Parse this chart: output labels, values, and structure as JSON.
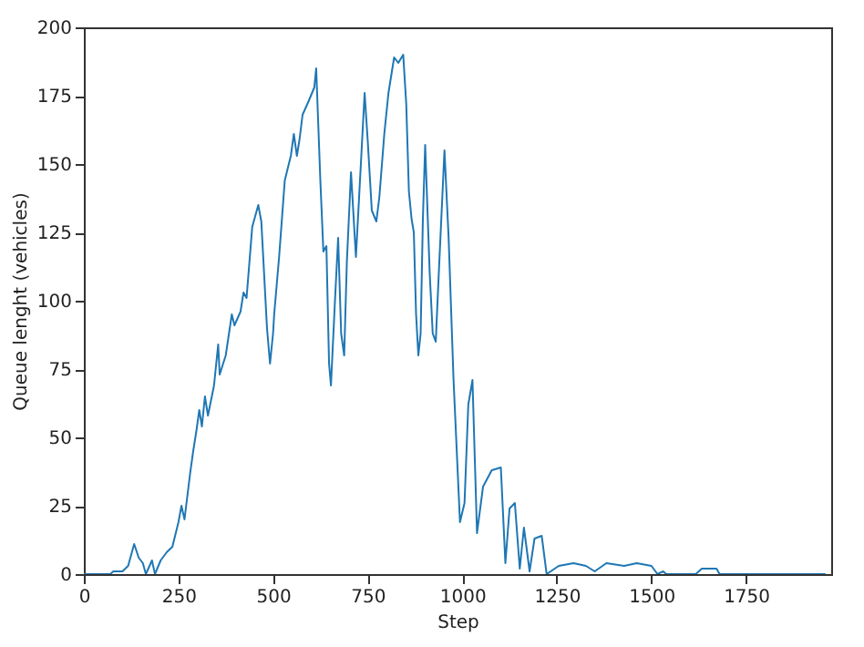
{
  "chart_data": {
    "type": "line",
    "xlabel": "Step",
    "ylabel": "Queue lenght (vehicles)",
    "xlim": [
      0,
      1975
    ],
    "ylim": [
      0,
      200
    ],
    "xticks": [
      0,
      250,
      500,
      750,
      1000,
      1250,
      1500,
      1750
    ],
    "yticks": [
      0,
      25,
      50,
      75,
      100,
      125,
      150,
      175,
      200
    ],
    "grid": false,
    "marker": "none",
    "line_style": "solid",
    "series": [
      {
        "color": "#1f77b4",
        "x": [
          0,
          70,
          78,
          102,
          117,
          133,
          145,
          156,
          164,
          180,
          188,
          203,
          219,
          234,
          250,
          258,
          266,
          281,
          289,
          297,
          305,
          312,
          320,
          328,
          344,
          355,
          359,
          375,
          391,
          398,
          414,
          422,
          430,
          445,
          461,
          469,
          484,
          492,
          500,
          503,
          516,
          531,
          547,
          555,
          563,
          570,
          578,
          594,
          609,
          614,
          625,
          633,
          641,
          648,
          653,
          664,
          672,
          680,
          688,
          695,
          706,
          719,
          734,
          742,
          750,
          761,
          773,
          781,
          794,
          805,
          820,
          831,
          844,
          852,
          859,
          866,
          872,
          878,
          884,
          890,
          896,
          902,
          914,
          922,
          930,
          938,
          953,
          964,
          977,
          994,
          1006,
          1016,
          1027,
          1039,
          1055,
          1078,
          1102,
          1114,
          1125,
          1139,
          1152,
          1163,
          1178,
          1191,
          1210,
          1223,
          1255,
          1294,
          1327,
          1350,
          1381,
          1428,
          1461,
          1500,
          1516,
          1531,
          1539,
          1617,
          1633,
          1672,
          1680,
          1960
        ],
        "values": [
          0,
          0,
          1,
          1,
          3,
          11,
          6,
          4,
          0,
          5,
          0,
          5,
          8,
          10,
          19,
          25,
          20,
          37,
          45,
          52,
          60,
          54,
          65,
          58,
          69,
          84,
          73,
          80,
          95,
          91,
          96,
          103,
          101,
          127,
          135,
          129,
          90,
          77,
          88,
          95,
          116,
          144,
          153,
          161,
          153,
          159,
          168,
          173,
          178,
          185,
          144,
          118,
          120,
          77,
          69,
          101,
          123,
          88,
          80,
          114,
          147,
          116,
          155,
          176,
          159,
          133,
          129,
          138,
          161,
          176,
          189,
          187,
          190,
          172,
          140,
          130,
          125,
          95,
          80,
          88,
          130,
          157,
          110,
          88,
          85,
          110,
          155,
          123,
          71,
          19,
          26,
          62,
          71,
          15,
          32,
          38,
          39,
          4,
          24,
          26,
          2,
          17,
          1,
          13,
          14,
          0,
          3,
          4,
          3,
          1,
          4,
          3,
          4,
          3,
          0,
          1,
          0,
          0,
          2,
          2,
          0,
          0
        ]
      }
    ]
  }
}
